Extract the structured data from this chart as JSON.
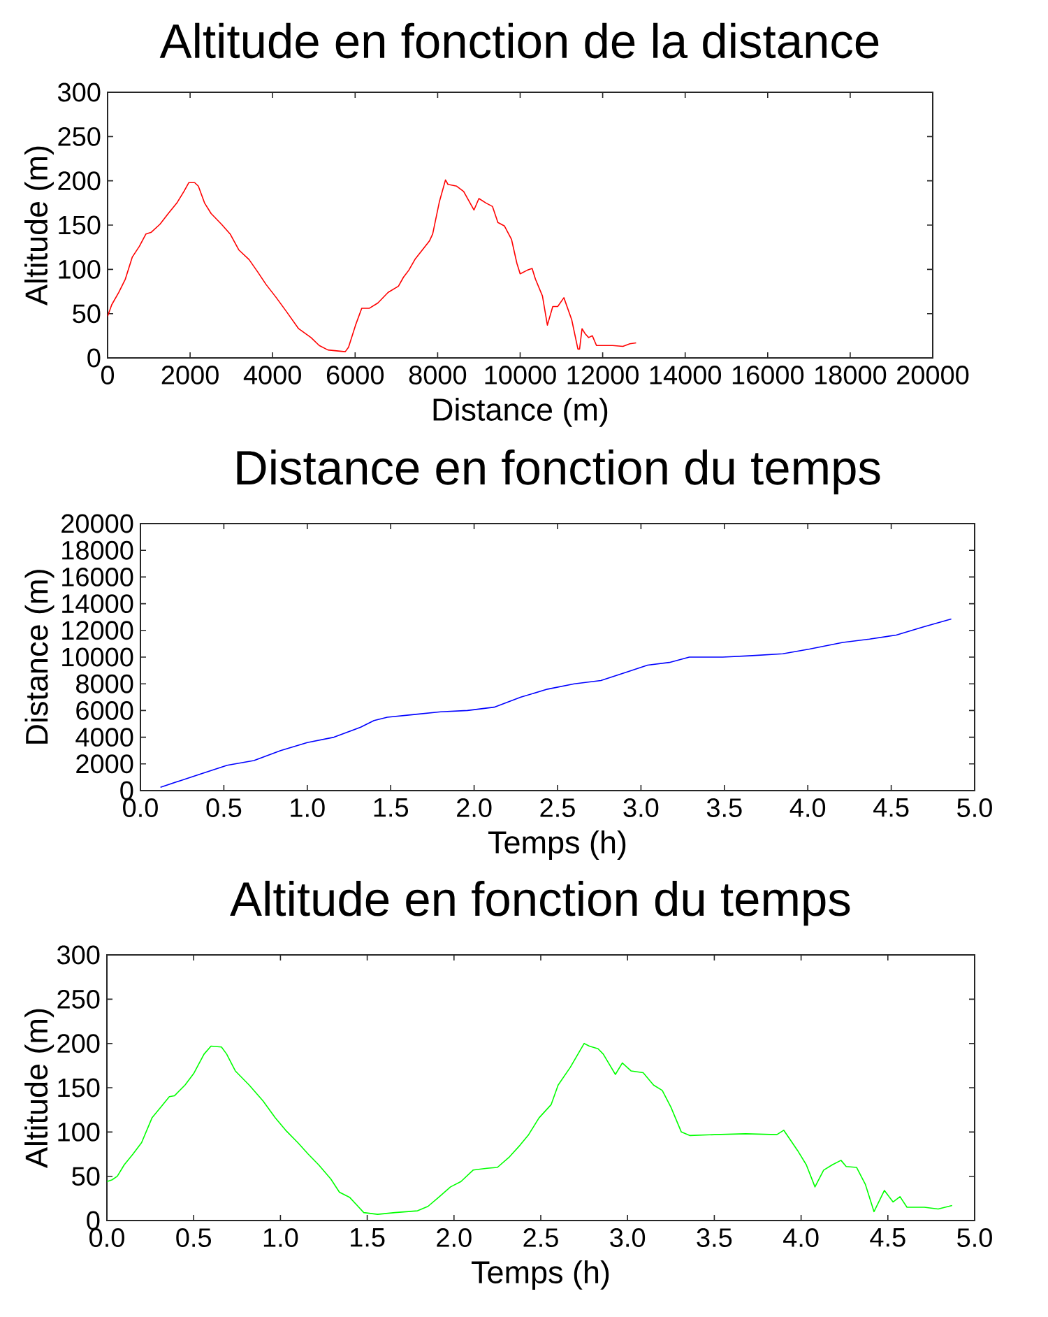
{
  "chart_data": [
    {
      "type": "line",
      "title": "Altitude en fonction de la distance",
      "xlabel": "Distance (m)",
      "ylabel": "Altitude (m)",
      "color": "#ff0000",
      "x": [
        0,
        100,
        270,
        430,
        600,
        770,
        930,
        1060,
        1270,
        1470,
        1680,
        1850,
        1970,
        2110,
        2200,
        2350,
        2510,
        2760,
        2970,
        3180,
        3430,
        3640,
        3840,
        4090,
        4340,
        4630,
        4930,
        5130,
        5340,
        5550,
        5760,
        5840,
        6010,
        6160,
        6340,
        6550,
        6800,
        7050,
        7170,
        7300,
        7460,
        7800,
        7880,
        8040,
        8190,
        8250,
        8460,
        8630,
        8880,
        9000,
        9170,
        9250,
        9330,
        9460,
        9620,
        9790,
        9920,
        10000,
        10170,
        10290,
        10370,
        10540,
        10660,
        10790,
        10910,
        11060,
        11250,
        11400,
        11440,
        11500,
        11580,
        11660,
        11750,
        11850,
        12000,
        12240,
        12490,
        12660,
        12810
      ],
      "values": [
        47,
        60,
        74,
        89,
        114,
        126,
        140,
        142,
        151,
        163,
        175,
        188,
        198,
        198,
        194,
        175,
        163,
        151,
        140,
        122,
        111,
        97,
        83,
        68,
        52,
        33,
        23,
        14,
        9,
        8,
        7,
        12,
        37,
        56,
        56,
        62,
        74,
        81,
        91,
        99,
        112,
        132,
        140,
        176,
        201,
        196,
        194,
        188,
        167,
        180,
        175,
        173,
        171,
        153,
        149,
        134,
        107,
        95,
        99,
        101,
        89,
        70,
        37,
        58,
        58,
        68,
        43,
        10,
        10,
        33,
        27,
        23,
        25,
        14,
        14,
        14,
        13,
        16,
        17
      ],
      "xlim": [
        0,
        20000
      ],
      "xticks": [
        0,
        2000,
        4000,
        6000,
        8000,
        10000,
        12000,
        14000,
        16000,
        18000,
        20000
      ],
      "ylim": [
        0,
        300
      ],
      "yticks": [
        0,
        50,
        100,
        150,
        200,
        250,
        300
      ]
    },
    {
      "type": "line",
      "title": "Distance en fonction du temps",
      "xlabel": "Temps (h)",
      "ylabel": "Distance (m)",
      "color": "#0000ff",
      "x": [
        0.12,
        0.24,
        0.36,
        0.52,
        0.68,
        0.84,
        1.0,
        1.16,
        1.32,
        1.4,
        1.48,
        1.64,
        1.8,
        1.96,
        2.12,
        2.28,
        2.44,
        2.6,
        2.76,
        2.92,
        3.04,
        3.17,
        3.29,
        3.49,
        3.65,
        3.85,
        4.01,
        4.21,
        4.37,
        4.53,
        4.69,
        4.86
      ],
      "values": [
        250,
        750,
        1250,
        1900,
        2250,
        3000,
        3600,
        4000,
        4750,
        5250,
        5500,
        5700,
        5900,
        6000,
        6250,
        7000,
        7600,
        8000,
        8250,
        8900,
        9400,
        9600,
        10000,
        10000,
        10100,
        10250,
        10600,
        11100,
        11350,
        11650,
        12250,
        12850
      ],
      "xlim": [
        0,
        5
      ],
      "xticks": [
        {
          "value": 0,
          "label": "0.0"
        },
        0.5,
        {
          "value": 1,
          "label": "1.0"
        },
        1.5,
        {
          "value": 2,
          "label": "2.0"
        },
        2.5,
        {
          "value": 3,
          "label": "3.0"
        },
        3.5,
        {
          "value": 4,
          "label": "4.0"
        },
        4.5,
        {
          "value": 5,
          "label": "5.0"
        }
      ],
      "ylim": [
        0,
        20000
      ],
      "yticks": [
        0,
        2000,
        4000,
        6000,
        8000,
        10000,
        12000,
        14000,
        16000,
        18000,
        20000
      ]
    },
    {
      "type": "line",
      "title": "Altitude en fonction du temps",
      "xlabel": "Temps (h)",
      "ylabel": "Altitude (m)",
      "color": "#00ff00",
      "x": [
        0,
        0.03,
        0.06,
        0.1,
        0.15,
        0.2,
        0.26,
        0.31,
        0.36,
        0.39,
        0.45,
        0.5,
        0.56,
        0.6,
        0.66,
        0.69,
        0.74,
        0.82,
        0.9,
        0.97,
        1.03,
        1.1,
        1.16,
        1.22,
        1.29,
        1.34,
        1.4,
        1.48,
        1.56,
        1.66,
        1.79,
        1.85,
        1.91,
        1.98,
        2.04,
        2.11,
        2.19,
        2.25,
        2.32,
        2.38,
        2.43,
        2.49,
        2.56,
        2.6,
        2.67,
        2.75,
        2.78,
        2.83,
        2.86,
        2.93,
        2.97,
        3.02,
        3.09,
        3.15,
        3.2,
        3.25,
        3.31,
        3.36,
        3.5,
        3.68,
        3.86,
        3.9,
        3.98,
        4.03,
        4.08,
        4.13,
        4.18,
        4.23,
        4.26,
        4.32,
        4.37,
        4.42,
        4.48,
        4.53,
        4.57,
        4.61,
        4.71,
        4.79,
        4.87
      ],
      "values": [
        44,
        46,
        50,
        63,
        75,
        88,
        116,
        128,
        140,
        141,
        153,
        166,
        188,
        197,
        196,
        188,
        169,
        153,
        135,
        116,
        102,
        88,
        75,
        63,
        47,
        32,
        26,
        9,
        7,
        9,
        11,
        16,
        26,
        38,
        44,
        57,
        59,
        60,
        72,
        85,
        97,
        116,
        131,
        153,
        173,
        200,
        197,
        194,
        188,
        165,
        178,
        169,
        167,
        153,
        147,
        128,
        100,
        96,
        97,
        98,
        97,
        102,
        79,
        63,
        38,
        57,
        63,
        68,
        61,
        60,
        41,
        10,
        34,
        21,
        27,
        15,
        15,
        13,
        17
      ],
      "xlim": [
        0,
        5
      ],
      "xticks": [
        {
          "value": 0,
          "label": "0.0"
        },
        0.5,
        {
          "value": 1,
          "label": "1.0"
        },
        1.5,
        {
          "value": 2,
          "label": "2.0"
        },
        2.5,
        {
          "value": 3,
          "label": "3.0"
        },
        3.5,
        {
          "value": 4,
          "label": "4.0"
        },
        4.5,
        {
          "value": 5,
          "label": "5.0"
        }
      ],
      "ylim": [
        0,
        300
      ],
      "yticks": [
        0,
        50,
        100,
        150,
        200,
        250,
        300
      ]
    }
  ]
}
